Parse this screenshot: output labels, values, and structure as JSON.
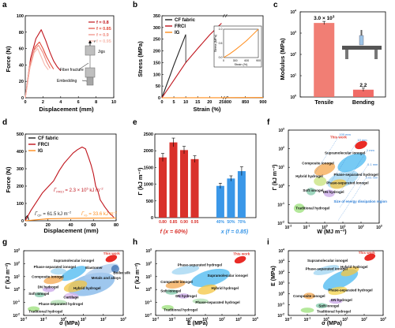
{
  "colors": {
    "dark_red": "#b5121b",
    "red": "#e03a2f",
    "orange": "#ff8c1a",
    "blue": "#3a97e8",
    "light_blue": "#49b8f0",
    "pink": "#f2a7a7",
    "axis": "#000000",
    "annotation_blue": "#2f7fd6"
  },
  "panel_labels": [
    "a",
    "b",
    "c",
    "d",
    "e",
    "f",
    "g",
    "h",
    "i"
  ],
  "chart_data": [
    {
      "panel": "a",
      "type": "line",
      "xlabel": "Displacement (mm)",
      "ylabel": "Force (N)",
      "xlim": [
        0,
        10
      ],
      "ylim": [
        0,
        100
      ],
      "xticks": [
        0,
        2,
        4,
        6,
        8,
        10
      ],
      "yticks": [
        0,
        20,
        40,
        60,
        80,
        100
      ],
      "legend": [
        "f = 0.8",
        "f = 0.85",
        "f = 0.9",
        "f = 0.95"
      ],
      "series": [
        {
          "name": "f = 0.8",
          "color": "#c0141c",
          "x": [
            0,
            0.6,
            1.2,
            1.8,
            2.3,
            2.8,
            3.2,
            3.6,
            4.0
          ],
          "y": [
            0,
            48,
            72,
            83,
            70,
            55,
            45,
            38,
            33
          ]
        },
        {
          "name": "f = 0.85",
          "color": "#e24a3b",
          "x": [
            0,
            0.6,
            1.1,
            1.6,
            2.0,
            2.4,
            2.8,
            3.2
          ],
          "y": [
            0,
            42,
            62,
            68,
            60,
            50,
            42,
            35
          ]
        },
        {
          "name": "f = 0.9",
          "color": "#ef8a7e",
          "x": [
            0,
            0.5,
            1.0,
            1.5,
            2.0,
            2.4,
            2.8
          ],
          "y": [
            0,
            40,
            58,
            64,
            55,
            44,
            36
          ]
        },
        {
          "name": "f = 0.95",
          "color": "#f7b9ad",
          "x": [
            0,
            0.5,
            1.0,
            1.4,
            1.8,
            2.2,
            2.6
          ],
          "y": [
            0,
            35,
            55,
            60,
            50,
            40,
            34
          ]
        }
      ],
      "annotations": [
        "Jigs",
        "Fiber fracture",
        "Embedding",
        "F"
      ]
    },
    {
      "panel": "b",
      "type": "line",
      "xlabel": "Strain (%)",
      "ylabel": "Stress (MPa)",
      "xlim": [
        0,
        900
      ],
      "ylim": [
        0,
        350
      ],
      "xticks": [
        "0",
        "5",
        "10",
        "15",
        "20",
        "25",
        "800",
        "850",
        "900"
      ],
      "yticks": [
        0,
        50,
        100,
        150,
        200,
        250,
        300,
        350
      ],
      "axis_break": [
        25,
        800
      ],
      "legend": [
        "CF fabric",
        "FRCI",
        "IG"
      ],
      "series": [
        {
          "name": "CF fabric",
          "color": "#222222",
          "x": [
            0,
            5,
            10
          ],
          "y": [
            0,
            140,
            270
          ]
        },
        {
          "name": "FRCI",
          "color": "#c0141c",
          "x": [
            0,
            5,
            10,
            15,
            20,
            25
          ],
          "y": [
            0,
            75,
            150,
            210,
            268,
            318
          ]
        },
        {
          "name": "IG",
          "color": "#ff8c1a",
          "x": [
            0,
            25,
            800,
            900
          ],
          "y": [
            0,
            0.2,
            0.8,
            1.0
          ]
        }
      ],
      "inset": {
        "xlabel": "Strain (%)",
        "ylabel": "Stress (MPa)",
        "xticks": [
          0,
          300,
          600,
          900
        ],
        "yticks": [
          0.0,
          0.5,
          1.0
        ],
        "x": [
          0,
          150,
          300,
          450,
          600,
          750,
          900
        ],
        "y": [
          0,
          0.12,
          0.27,
          0.43,
          0.6,
          0.8,
          1.0
        ]
      }
    },
    {
      "panel": "c",
      "type": "bar",
      "ylabel": "Modulus (MPa)",
      "yscale": "log",
      "ylim_exponents": [
        0,
        4
      ],
      "categories": [
        "Tensile",
        "Bending"
      ],
      "values": [
        3000,
        2.2
      ],
      "data_labels": [
        "3.0 × 10",
        "2.2"
      ],
      "data_label_superscript": "3"
    },
    {
      "panel": "d",
      "type": "line",
      "xlabel": "Displacement (mm)",
      "ylabel": "Force (N)",
      "xlim": [
        0,
        80
      ],
      "ylim": [
        0,
        500
      ],
      "xticks": [
        0,
        20,
        40,
        60,
        80
      ],
      "yticks": [
        0,
        100,
        200,
        300,
        400,
        500
      ],
      "legend": [
        "CF fabric",
        "FRCI",
        "IG"
      ],
      "series": [
        {
          "name": "CF fabric",
          "color": "#222222",
          "x": [
            0,
            0.5,
            2,
            3
          ],
          "y": [
            0,
            20,
            30,
            5
          ]
        },
        {
          "name": "FRCI",
          "color": "#c0141c",
          "x": [
            0,
            5,
            15,
            25,
            30,
            34,
            38,
            42,
            46,
            50,
            53,
            56,
            58,
            60,
            62,
            64,
            66,
            68,
            70,
            74,
            78
          ],
          "y": [
            0,
            60,
            160,
            230,
            290,
            330,
            360,
            390,
            410,
            425,
            415,
            360,
            320,
            270,
            200,
            170,
            120,
            100,
            80,
            45,
            20
          ]
        },
        {
          "name": "IG",
          "color": "#ff8c1a",
          "x": [
            0,
            20,
            40,
            60,
            80
          ],
          "y": [
            0,
            12,
            14,
            15,
            16
          ]
        }
      ],
      "annotations": [
        {
          "text": "Γ",
          "sub": "FRCI",
          "rest": " = 2.3 × 10",
          "sup": "5",
          "unit": " kJ m",
          "unit_sup": "−2"
        },
        {
          "text": "Γ",
          "sub": "CF",
          "rest": " = 61.5 kJ m",
          "sup": "−2"
        },
        {
          "text": "Γ",
          "sub": "IG",
          "rest": " = 33.6 kJ m",
          "sup": "−2"
        }
      ]
    },
    {
      "panel": "e",
      "type": "bar",
      "ylabel": "Γ (kJ m⁻²)",
      "ylim": [
        0,
        2500
      ],
      "yticks": [
        0,
        500,
        1000,
        1500,
        2000,
        2500
      ],
      "groups": [
        {
          "title": "f (x = 60%)",
          "categories": [
            "0.80",
            "0.85",
            "0.90",
            "0.95"
          ],
          "values": [
            1800,
            2250,
            2020,
            1750
          ],
          "errors": [
            120,
            130,
            110,
            100
          ],
          "color": "#d9312b"
        },
        {
          "title": "x (f = 0.85)",
          "categories": [
            "40%",
            "50%",
            "70%"
          ],
          "values": [
            950,
            1170,
            1390
          ],
          "errors": [
            80,
            80,
            130
          ],
          "color": "#3a97e8"
        }
      ]
    },
    {
      "panel": "f",
      "type": "scatter",
      "kind": "ashby",
      "xlabel": "W (MJ m⁻³)",
      "ylabel": "Γ (kJ m⁻²)",
      "xscale": "log",
      "yscale": "log",
      "xlim_exponents": [
        -2,
        3
      ],
      "ylim_exponents": [
        -2,
        3
      ],
      "regions": [
        "This work",
        "Supramolecular ionogel",
        "Composite ionogel",
        "Hybrid hydrogel",
        "Phase-separated ionogel",
        "Phase-separated hydrogel",
        "DN hydrogel",
        "Soft ionogel",
        "Traditional hydrogel"
      ],
      "contours": [
        "100 mm",
        "10 mm",
        "1 mm",
        "0.1 mm",
        "0.01 mm"
      ],
      "note": "Size of energy dissipation region"
    },
    {
      "panel": "g",
      "type": "scatter",
      "kind": "ashby",
      "xlabel": "σ (MPa)",
      "ylabel": "Γ (kJ m⁻²)",
      "xscale": "log",
      "yscale": "log",
      "xlim_exponents": [
        -2,
        3
      ],
      "ylim_exponents": [
        -2,
        3
      ],
      "regions": [
        "This work",
        "Supramolecular ionogel",
        "Phase-separated ionogel",
        "Composite ionogel",
        "Hybrid hydrogel",
        "Metals and alloys",
        "Elastomer",
        "DN hydrogel",
        "Soft ionogel",
        "Cartilage",
        "Phase-separated hydrogel",
        "Traditional hydrogel",
        "Boiler silk"
      ]
    },
    {
      "panel": "h",
      "type": "scatter",
      "kind": "ashby",
      "xlabel": "E (MPa)",
      "ylabel": "Γ (kJ m⁻²)",
      "xscale": "log",
      "yscale": "log",
      "xlim_exponents": [
        -2,
        4
      ],
      "ylim_exponents": [
        -2,
        3
      ],
      "regions": [
        "This work",
        "Phase-separated hydrogel",
        "Supramolecular ionogel",
        "Composite ionogel",
        "Hybrid hydrogel",
        "Soft ionogel",
        "DN hydrogel",
        "Phase-separated hydrogel",
        "Traditional hydrogel"
      ]
    },
    {
      "panel": "i",
      "type": "scatter",
      "kind": "ashby",
      "xlabel": "σ (MPa)",
      "ylabel": "E (MPa)",
      "xscale": "log",
      "yscale": "log",
      "xlim_exponents": [
        -2,
        3
      ],
      "ylim_exponents": [
        -2,
        4
      ],
      "regions": [
        "This work",
        "Supramolecular ionogel",
        "Hybrid hydrogel",
        "Phase-separated ionogel",
        "Phase-separated hydrogel",
        "Composite ionogel",
        "DN hydrogel",
        "Soft ionogel",
        "Traditional hydrogel"
      ]
    }
  ]
}
